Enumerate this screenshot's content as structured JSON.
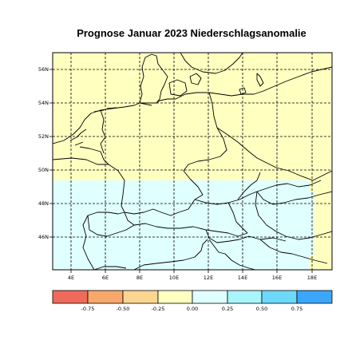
{
  "title": "Prognose Januar 2023 Niederschlagsanomalie",
  "map": {
    "region": "Central Europe",
    "lon_range": [
      2.9,
      19.2
    ],
    "lat_range": [
      44.0,
      57.0
    ],
    "lon_ticks": [
      "4E",
      "6E",
      "8E",
      "10E",
      "12E",
      "14E",
      "16E",
      "18E"
    ],
    "lat_ticks": [
      "56N",
      "54N",
      "52N",
      "50N",
      "48N",
      "46N"
    ],
    "grid_lines": "dashed",
    "anomaly_bands": [
      {
        "region": "north of ~49.3N",
        "class": "0.00 to 0.25",
        "color": "#ffffc0"
      },
      {
        "region": "south of ~49.3N",
        "class": "0.25 to 0.50",
        "color": "#e0ffff"
      },
      {
        "region": "far east strip (Poland/Hungary edge)",
        "class": "0.00 to 0.25",
        "color": "#ffffc0"
      }
    ]
  },
  "colorbar": {
    "colors": [
      "#f06a5c",
      "#f8a868",
      "#fcd590",
      "#ffffc0",
      "#e0ffff",
      "#a8f5fa",
      "#6ed8fa",
      "#3ca6fa"
    ],
    "labels": [
      "-0.75",
      "-0.50",
      "-0.25",
      "0.00",
      "0.25",
      "0.50",
      "0.75"
    ]
  }
}
